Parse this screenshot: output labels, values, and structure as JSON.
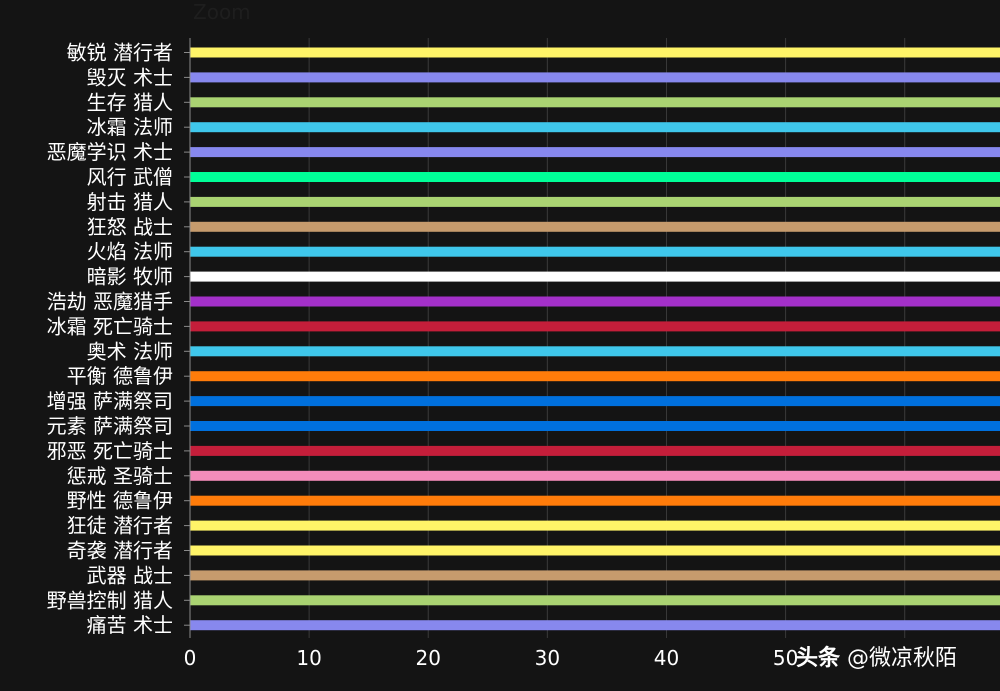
{
  "zoom_label": "Zoom",
  "watermark": {
    "brand": "头条",
    "handle": "@微凉秋陌"
  },
  "colors": {
    "background": "#141414",
    "grid": "#3a3a3a",
    "axis": "#8a8a8a",
    "text": "#ffffff"
  },
  "chart_data": {
    "type": "bar",
    "orientation": "horizontal",
    "categories": [
      "敏锐 潜行者",
      "毁灭 术士",
      "生存 猎人",
      "冰霜 法师",
      "恶魔学识 术士",
      "风行 武僧",
      "射击 猎人",
      "狂怒 战士",
      "火焰 法师",
      "暗影 牧师",
      "浩劫 恶魔猎手",
      "冰霜 死亡骑士",
      "奥术 法师",
      "平衡 德鲁伊",
      "增强 萨满祭司",
      "元素 萨满祭司",
      "邪恶 死亡骑士",
      "惩戒 圣骑士",
      "野性 德鲁伊",
      "狂徒 潜行者",
      "奇袭 潜行者",
      "武器 战士",
      "野兽控制 猎人",
      "痛苦 术士"
    ],
    "values": [
      70,
      70,
      70,
      70,
      70,
      70,
      70,
      70,
      70,
      70,
      70,
      70,
      70,
      70,
      70,
      70,
      70,
      70,
      70,
      70,
      70,
      70,
      70,
      70
    ],
    "bar_colors": [
      "#fff468",
      "#8788ee",
      "#aad372",
      "#3fc7eb",
      "#8788ee",
      "#00ff98",
      "#aad372",
      "#c69b6d",
      "#3fc7eb",
      "#ffffff",
      "#a330c9",
      "#c41e3a",
      "#3fc7eb",
      "#ff7c0a",
      "#0070dd",
      "#0070dd",
      "#c41e3a",
      "#f48cba",
      "#ff7c0a",
      "#fff468",
      "#fff468",
      "#c69b6d",
      "#aad372",
      "#8788ee"
    ],
    "x_ticks": [
      0,
      10,
      20,
      30,
      40,
      50
    ],
    "xlim": [
      0,
      68
    ],
    "grid": true
  }
}
